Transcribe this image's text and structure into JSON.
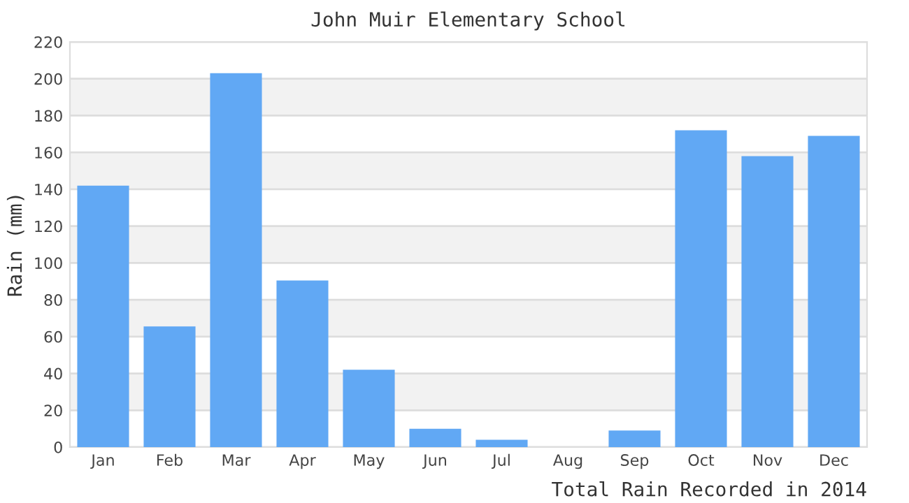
{
  "chart_data": {
    "type": "bar",
    "title": "John Muir Elementary School",
    "ylabel": "Rain (mm)",
    "xlabel": "Total Rain Recorded in 2014",
    "categories": [
      "Jan",
      "Feb",
      "Mar",
      "Apr",
      "May",
      "Jun",
      "Jul",
      "Aug",
      "Sep",
      "Oct",
      "Nov",
      "Dec"
    ],
    "values": [
      142,
      65.5,
      203,
      90.5,
      42,
      10,
      4,
      0,
      9,
      172,
      158,
      169
    ],
    "color": "#61a8f4",
    "ylim": [
      0,
      220
    ],
    "yticks": [
      0,
      20,
      40,
      60,
      80,
      100,
      120,
      140,
      160,
      180,
      200,
      220
    ],
    "grid": "y",
    "bands": [
      {
        "axis": "y",
        "from": 20,
        "to": 40,
        "color": "#f2f2f2"
      },
      {
        "axis": "y",
        "from": 60,
        "to": 80,
        "color": "#f2f2f2"
      },
      {
        "axis": "y",
        "from": 100,
        "to": 120,
        "color": "#f2f2f2"
      },
      {
        "axis": "y",
        "from": 140,
        "to": 160,
        "color": "#f2f2f2"
      },
      {
        "axis": "y",
        "from": 180,
        "to": 200,
        "color": "#f2f2f2"
      }
    ]
  }
}
